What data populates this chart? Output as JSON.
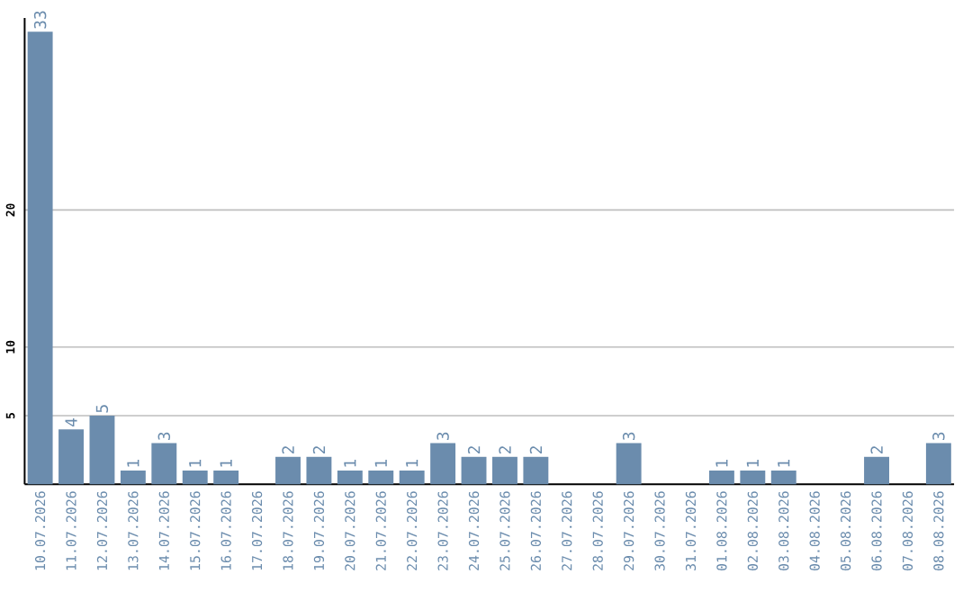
{
  "chart_data": {
    "type": "bar",
    "categories": [
      "10.07.2026",
      "11.07.2026",
      "12.07.2026",
      "13.07.2026",
      "14.07.2026",
      "15.07.2026",
      "16.07.2026",
      "17.07.2026",
      "18.07.2026",
      "19.07.2026",
      "20.07.2026",
      "21.07.2026",
      "22.07.2026",
      "23.07.2026",
      "24.07.2026",
      "25.07.2026",
      "26.07.2026",
      "27.07.2026",
      "28.07.2026",
      "29.07.2026",
      "30.07.2026",
      "31.07.2026",
      "01.08.2026",
      "02.08.2026",
      "03.08.2026",
      "04.08.2026",
      "05.08.2026",
      "06.08.2026",
      "07.08.2026",
      "08.08.2026"
    ],
    "values": [
      33,
      4,
      5,
      1,
      3,
      1,
      1,
      0,
      2,
      2,
      1,
      1,
      1,
      3,
      2,
      2,
      2,
      0,
      0,
      3,
      0,
      0,
      1,
      1,
      1,
      0,
      0,
      2,
      0,
      3
    ],
    "value_labels": [
      "33",
      "4",
      "5",
      "1",
      "3",
      "1",
      "1",
      null,
      "2",
      "2",
      "1",
      "1",
      "1",
      "3",
      "2",
      "2",
      "2",
      null,
      null,
      "3",
      null,
      null,
      "1",
      "1",
      "1",
      null,
      null,
      "2",
      null,
      "3"
    ],
    "color": "#6b8cad",
    "ylim": [
      0,
      34
    ],
    "yticks": [
      5,
      10,
      20
    ],
    "grid": "y"
  }
}
